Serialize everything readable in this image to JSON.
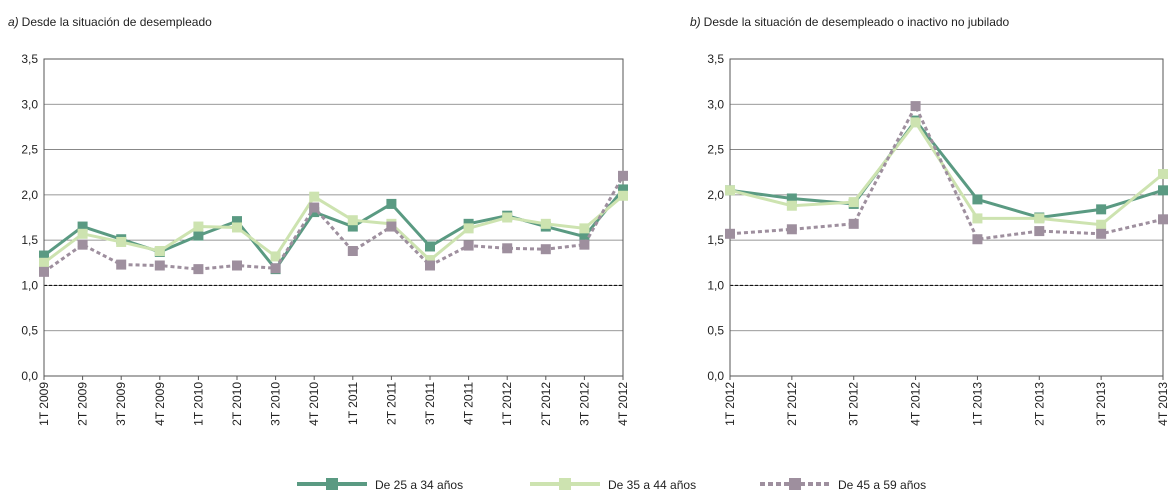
{
  "chart_data": [
    {
      "type": "line",
      "title_label": "a)",
      "title": "Desde la situación de desempleado",
      "categories": [
        "1T 2009",
        "2T 2009",
        "3T 2009",
        "4T 2009",
        "1T 2010",
        "2T 2010",
        "3T 2010",
        "4T 2010",
        "1T 2011",
        "2T 2011",
        "3T 2011",
        "4T 2011",
        "1T 2012",
        "2T 2012",
        "3T 2012",
        "4T 2012"
      ],
      "series": [
        {
          "name": "De 25 a 34 años",
          "color": "#5a9a82",
          "values": [
            1.33,
            1.65,
            1.51,
            1.37,
            1.55,
            1.71,
            1.18,
            1.81,
            1.65,
            1.9,
            1.43,
            1.68,
            1.77,
            1.65,
            1.54,
            2.06
          ]
        },
        {
          "name": "De 35 a 44 años",
          "color": "#cde3b0",
          "values": [
            1.25,
            1.57,
            1.48,
            1.38,
            1.65,
            1.64,
            1.32,
            1.98,
            1.72,
            1.68,
            1.28,
            1.63,
            1.75,
            1.68,
            1.63,
            1.99
          ]
        },
        {
          "name": "De 45 a 59 años",
          "color": "#9e8f9e",
          "dashed": true,
          "values": [
            1.15,
            1.45,
            1.23,
            1.22,
            1.18,
            1.22,
            1.19,
            1.86,
            1.38,
            1.65,
            1.22,
            1.44,
            1.41,
            1.4,
            1.45,
            2.21
          ]
        }
      ],
      "ylim": [
        0,
        3.5
      ],
      "yticks": [
        {
          "value": 0,
          "label": "0,0"
        },
        {
          "value": 0.5,
          "label": "0,5"
        },
        {
          "value": 1,
          "label": "1,0"
        },
        {
          "value": 1.5,
          "label": "1,5"
        },
        {
          "value": 2,
          "label": "2,0"
        },
        {
          "value": 2.5,
          "label": "2,5"
        },
        {
          "value": 3,
          "label": "3,0"
        },
        {
          "value": 3.5,
          "label": "3,5"
        }
      ],
      "grid": true,
      "reference_line": 1
    },
    {
      "type": "line",
      "title_label": "b)",
      "title": "Desde la situación de desempleado o inactivo no jubilado",
      "categories": [
        "1T 2012",
        "2T 2012",
        "3T 2012",
        "4T 2012",
        "1T 2013",
        "2T 2013",
        "3T 2013",
        "4T 2013"
      ],
      "series": [
        {
          "name": "De 25 a 34 años",
          "color": "#5a9a82",
          "values": [
            2.05,
            1.96,
            1.9,
            2.82,
            1.95,
            1.75,
            1.84,
            2.05
          ]
        },
        {
          "name": "De 35 a 44 años",
          "color": "#cde3b0",
          "values": [
            2.05,
            1.88,
            1.92,
            2.8,
            1.74,
            1.74,
            1.67,
            2.23
          ]
        },
        {
          "name": "De 45 a 59 años",
          "color": "#9e8f9e",
          "dashed": true,
          "values": [
            1.57,
            1.62,
            1.68,
            2.98,
            1.51,
            1.6,
            1.57,
            1.73
          ]
        }
      ],
      "ylim": [
        0,
        3.5
      ],
      "yticks": [
        {
          "value": 0,
          "label": "0,0"
        },
        {
          "value": 0.5,
          "label": "0,5"
        },
        {
          "value": 1,
          "label": "1,0"
        },
        {
          "value": 1.5,
          "label": "1,5"
        },
        {
          "value": 2,
          "label": "2,0"
        },
        {
          "value": 2.5,
          "label": "2,5"
        },
        {
          "value": 3,
          "label": "3,0"
        },
        {
          "value": 3.5,
          "label": "3,5"
        }
      ],
      "grid": true,
      "reference_line": 1
    }
  ]
}
